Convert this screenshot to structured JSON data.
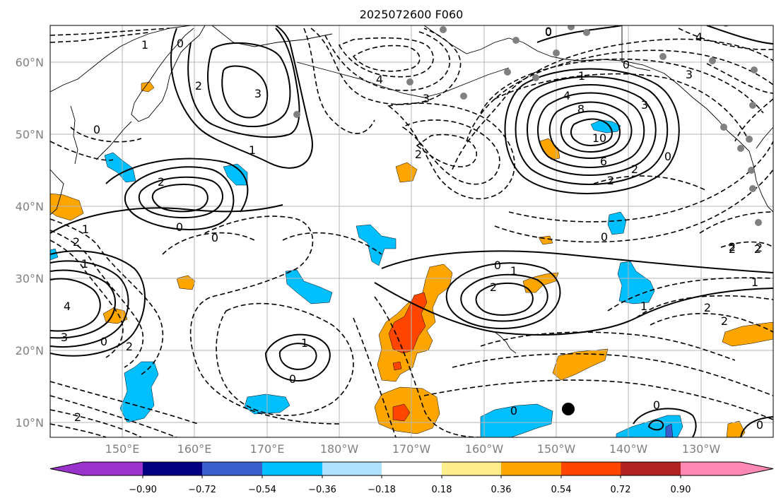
{
  "map": {
    "title": "2025072600 F060",
    "lat_labels": [
      "60°N",
      "50°N",
      "40°N",
      "30°N",
      "20°N",
      "10°N"
    ],
    "lat_values": [
      60,
      50,
      40,
      30,
      20,
      10
    ],
    "lon_labels": [
      "150°E",
      "160°E",
      "170°E",
      "180°W",
      "170°W",
      "160°W",
      "150°W",
      "140°W",
      "130°W"
    ],
    "lon_values": [
      150,
      160,
      170,
      180,
      190,
      200,
      210,
      220,
      230
    ],
    "extent": {
      "lon_min": 140,
      "lon_max": 240,
      "lat_min": 8,
      "lat_max": 65
    },
    "colorbar": {
      "tick_labels": [
        "−0.90",
        "−0.72",
        "−0.54",
        "−0.36",
        "−0.18",
        "0.18",
        "0.36",
        "0.54",
        "0.72",
        "0.90"
      ],
      "colors": [
        "#9933cc",
        "#000080",
        "#3a5fcd",
        "#00bfff",
        "#b0e2ff",
        "#ffffff",
        "#ffec8b",
        "#ffa500",
        "#ff4500",
        "#b22222",
        "#ff88b4"
      ],
      "extend": "both"
    },
    "contour_labels": [
      {
        "text": "0"
      },
      {
        "text": "1"
      },
      {
        "text": "3"
      },
      {
        "text": "2"
      },
      {
        "text": "2"
      },
      {
        "text": "1"
      },
      {
        "text": "0"
      },
      {
        "text": "0"
      },
      {
        "text": "0"
      },
      {
        "text": "4"
      },
      {
        "text": "3"
      },
      {
        "text": "2"
      },
      {
        "text": "0"
      },
      {
        "text": "1"
      },
      {
        "text": "4"
      },
      {
        "text": "8"
      },
      {
        "text": "10"
      },
      {
        "text": "6"
      },
      {
        "text": "2"
      },
      {
        "text": "2"
      },
      {
        "text": "0"
      },
      {
        "text": "3"
      },
      {
        "text": "0"
      },
      {
        "text": "0"
      },
      {
        "text": "2"
      },
      {
        "text": "2"
      },
      {
        "text": "1"
      },
      {
        "text": "2"
      },
      {
        "text": "1"
      },
      {
        "text": "0"
      },
      {
        "text": "2"
      },
      {
        "text": "1"
      },
      {
        "text": "0"
      },
      {
        "text": "4"
      },
      {
        "text": "3"
      },
      {
        "text": "0"
      },
      {
        "text": "1"
      },
      {
        "text": "2"
      },
      {
        "text": "2"
      },
      {
        "text": "1"
      },
      {
        "text": "1"
      },
      {
        "text": "2"
      },
      {
        "text": "0"
      },
      {
        "text": "0"
      },
      {
        "text": "0"
      },
      {
        "text": "0"
      },
      {
        "text": "4"
      },
      {
        "text": "3"
      },
      {
        "text": "2"
      },
      {
        "text": "2"
      },
      {
        "text": "2"
      }
    ]
  }
}
